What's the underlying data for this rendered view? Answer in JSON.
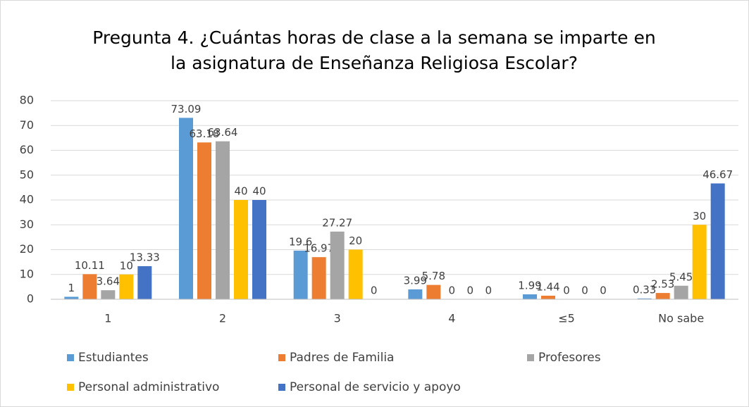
{
  "chart_data": {
    "type": "bar",
    "title": "Pregunta 4. ¿Cuántas horas de clase a la semana se imparte en la asignatura de Enseñanza Religiosa Escolar?",
    "categories": [
      "1",
      "2",
      "3",
      "4",
      "≤5",
      "No sabe"
    ],
    "series": [
      {
        "name": "Estudiantes",
        "color": "#5b9bd5",
        "values": [
          1,
          73.09,
          19.6,
          3.99,
          1.99,
          0.33
        ]
      },
      {
        "name": "Padres de Familia",
        "color": "#ed7d31",
        "values": [
          10.11,
          63.18,
          16.97,
          5.78,
          1.44,
          2.53
        ]
      },
      {
        "name": "Profesores",
        "color": "#a5a5a5",
        "values": [
          3.64,
          63.64,
          27.27,
          0,
          0,
          5.45
        ]
      },
      {
        "name": "Personal administrativo",
        "color": "#ffc000",
        "values": [
          10,
          40,
          20,
          0,
          0,
          30
        ]
      },
      {
        "name": "Personal de servicio y apoyo",
        "color": "#4472c4",
        "values": [
          13.33,
          40,
          0,
          0,
          0,
          46.67
        ]
      }
    ],
    "ylim": [
      0,
      80
    ],
    "yticks": [
      0,
      10,
      20,
      30,
      40,
      50,
      60,
      70,
      80
    ],
    "grid": true,
    "legend": "bottom"
  }
}
